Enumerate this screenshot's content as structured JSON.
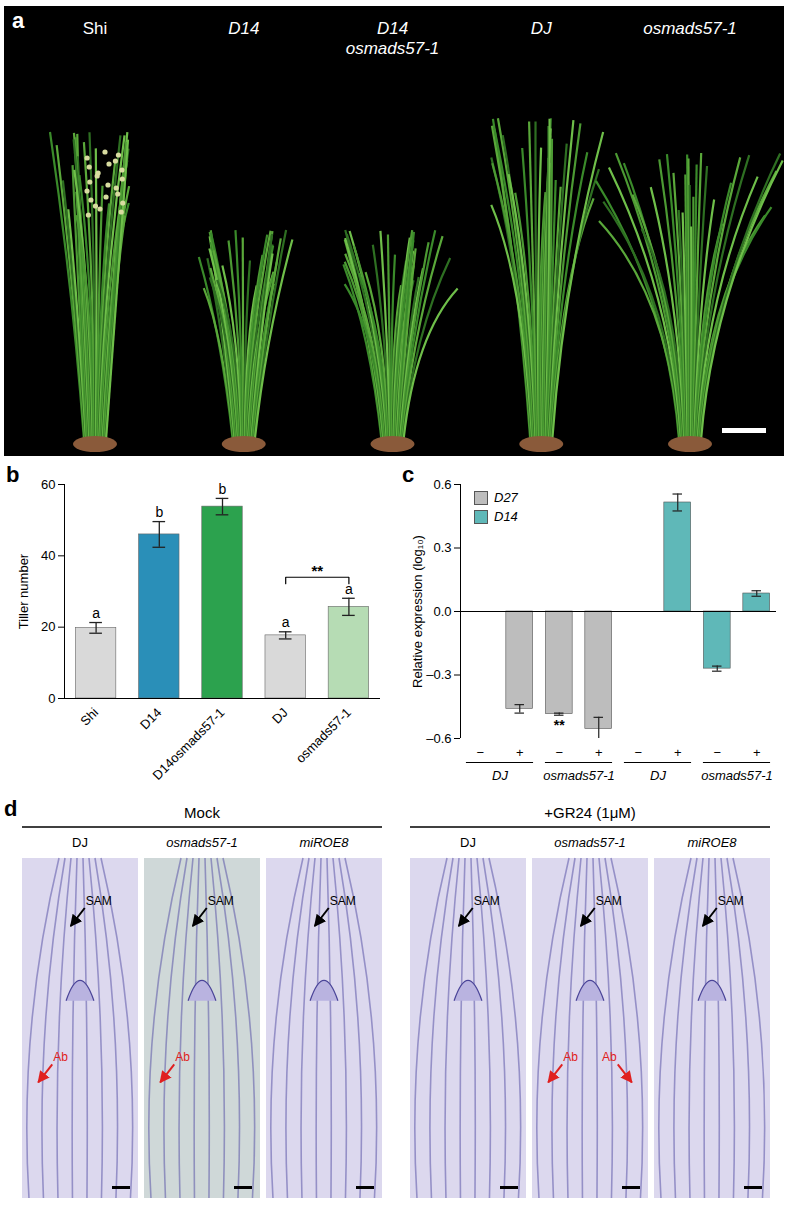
{
  "panel_a": {
    "letter": "a",
    "labels": [
      [
        "Shi"
      ],
      [
        "D14"
      ],
      [
        "D14",
        "osmads57-1"
      ],
      [
        "DJ"
      ],
      [
        "osmads57-1"
      ]
    ]
  },
  "chart_data": [
    {
      "letter": "b",
      "type": "bar",
      "categories": [
        "Shi",
        "D14",
        "D14osmads57-1",
        "DJ",
        "osmads57-1"
      ],
      "values": [
        19.8,
        46,
        53.8,
        17.7,
        25.7
      ],
      "errors": [
        1.5,
        3.6,
        2.3,
        1.0,
        2.4
      ],
      "colors": [
        "#d9d9d9",
        "#2a8fb8",
        "#2ca24e",
        "#d9d9d9",
        "#b6dcb4"
      ],
      "value_letters": [
        "a",
        "b",
        "b",
        "a",
        "a"
      ],
      "ylabel": "Tiller number",
      "ylim": [
        0,
        60
      ],
      "yticks": [
        0,
        20,
        40,
        60
      ],
      "annotations": [
        {
          "text": "**",
          "from": "DJ",
          "to": "osmads57-1",
          "y": 34
        }
      ]
    },
    {
      "letter": "c",
      "type": "bar",
      "categories": [
        "−",
        "+",
        "−",
        "+",
        "−",
        "+",
        "−",
        "+"
      ],
      "group_labels": [
        "DJ",
        "DJ",
        "osmads57-1",
        "osmads57-1",
        "DJ",
        "DJ",
        "osmads57-1",
        "osmads57-1"
      ],
      "series": [
        {
          "name": "D27",
          "color": "#bdbdbd",
          "values": [
            0,
            -0.46,
            -0.485,
            -0.555,
            null,
            null,
            null,
            null
          ],
          "errors": [
            null,
            0.02,
            0.005,
            0.055,
            null,
            null,
            null,
            null
          ]
        },
        {
          "name": "D14",
          "color": "#5fb8b8",
          "values": [
            null,
            null,
            null,
            null,
            0,
            0.515,
            -0.27,
            0.085
          ],
          "errors": [
            null,
            null,
            null,
            null,
            null,
            0.04,
            0.012,
            0.013
          ]
        }
      ],
      "annotations": [
        {
          "text": "**",
          "series": "D27",
          "index": 2
        }
      ],
      "legend": "top-left",
      "ylabel": "Relative expression (log₁₀)",
      "ylim": [
        -0.6,
        0.6
      ],
      "yticks": [
        {
          "value": -0.6,
          "label": "–0.6"
        },
        {
          "value": -0.3,
          "label": "–0.3"
        },
        {
          "value": 0,
          "label": "0.0"
        },
        0.3,
        0.6
      ]
    }
  ],
  "panel_d": {
    "letter": "d",
    "arrow_colors": {
      "SAM": "#000000",
      "Ab": "#e02020"
    },
    "conditions": [
      {
        "label": "Mock",
        "images": [
          {
            "label": "DJ",
            "arrows": [
              "SAM",
              "Ab"
            ]
          },
          {
            "label": "osmads57-1",
            "arrows": [
              "SAM",
              "Ab"
            ]
          },
          {
            "label": "miROE8",
            "arrows": [
              "SAM"
            ]
          }
        ]
      },
      {
        "label": "+GR24 (1μM)",
        "images": [
          {
            "label": "DJ",
            "arrows": [
              "SAM"
            ]
          },
          {
            "label": "osmads57-1",
            "arrows": [
              "SAM",
              "Ab",
              "Ab"
            ]
          },
          {
            "label": "miROE8",
            "arrows": [
              "SAM"
            ]
          }
        ]
      }
    ]
  }
}
